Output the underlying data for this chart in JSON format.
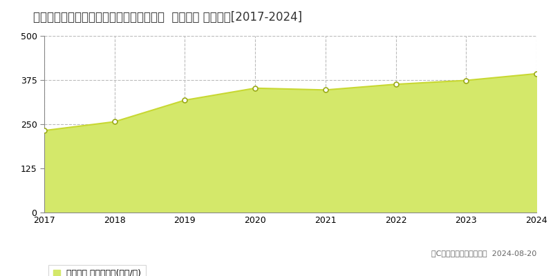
{
  "title": "愛知県名古屋市中区栄１丁目１１０２番外  地価公示 地価推移[2017-2024]",
  "years": [
    2017,
    2018,
    2019,
    2020,
    2021,
    2022,
    2023,
    2024
  ],
  "values": [
    232,
    257,
    318,
    352,
    347,
    363,
    374,
    393
  ],
  "line_color": "#c8d832",
  "fill_color": "#d4e86a",
  "marker_color": "#ffffff",
  "marker_edge_color": "#9aaa18",
  "background_color": "#ffffff",
  "plot_bg_color": "#ffffff",
  "grid_color": "#bbbbbb",
  "ylim": [
    0,
    500
  ],
  "yticks": [
    0,
    125,
    250,
    375,
    500
  ],
  "legend_label": "地価公示 平均坪単価(万円/坪)",
  "copyright_text": "（C）土地価格ドットコム  2024-08-20",
  "title_fontsize": 12,
  "axis_fontsize": 9,
  "legend_fontsize": 9
}
